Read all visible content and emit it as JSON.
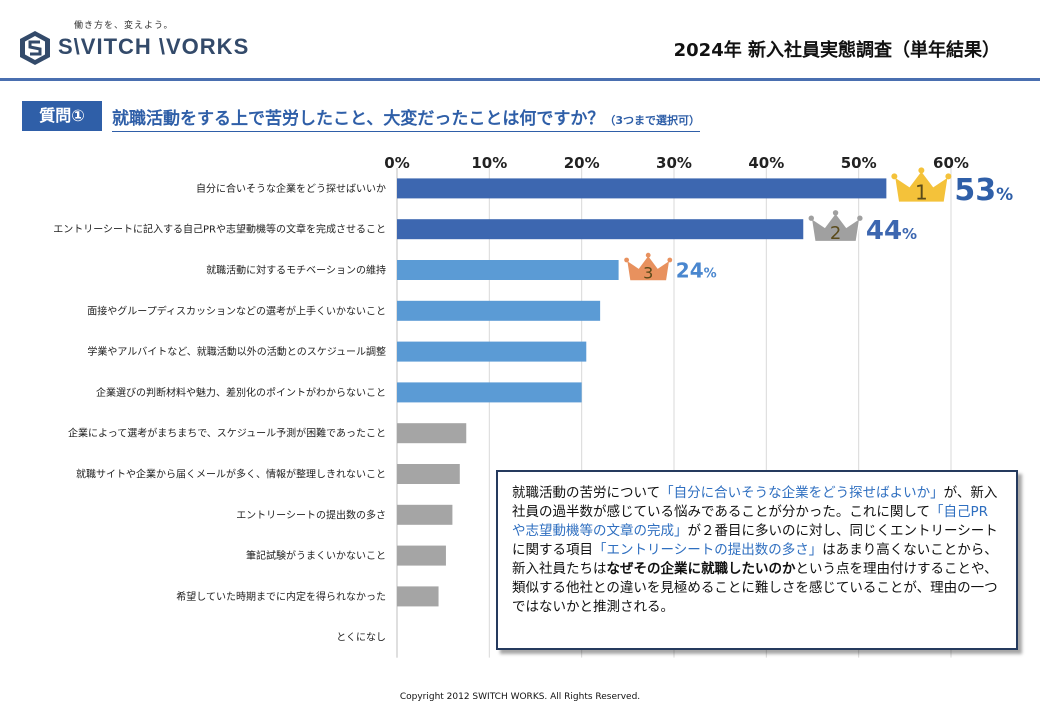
{
  "header": {
    "logo_tagline": "働き方を、変えよう。",
    "logo_text": "S\\VITCH \\VORKS",
    "report_title": "2024年 新入社員実態調査（単年結果）"
  },
  "question": {
    "badge": "質問①",
    "text": "就職活動をする上で苦労したこと、大変だったことは何ですか？",
    "note": "（3つまで選択可）"
  },
  "colors": {
    "top3": "#3d67b0",
    "upper": "#5b9bd5",
    "lower": "#a5a5a5",
    "gold": "#f4c23a",
    "silver": "#a0a0a0",
    "bronze": "#e8915e"
  },
  "chart_data": {
    "type": "bar",
    "orientation": "horizontal",
    "xlim": [
      0,
      60
    ],
    "xticks": [
      "0%",
      "10%",
      "20%",
      "30%",
      "40%",
      "50%",
      "60%"
    ],
    "grid": true,
    "categories": [
      "自分に合いそうな企業をどう探せばいいか",
      "エントリーシートに記入する自己PRや志望動機等の文章を完成させること",
      "就職活動に対するモチベーションの維持",
      "面接やグループディスカッションなどの選考が上手くいかないこと",
      "学業やアルバイトなど、就職活動以外の活動とのスケジュール調整",
      "企業選びの判断材料や魅力、差別化のポイントがわからないこと",
      "企業によって選考がまちまちで、スケジュール予測が困難であったこと",
      "就職サイトや企業から届くメールが多く、情報が整理しきれないこと",
      "エントリーシートの提出数の多さ",
      "筆記試験がうまくいかないこと",
      "希望していた時期までに内定を得られなかった",
      "とくになし"
    ],
    "values": [
      53,
      44,
      24,
      22,
      20.5,
      20,
      7.5,
      6.8,
      6.0,
      5.3,
      4.5,
      0
    ],
    "ranks": [
      {
        "rank": "1",
        "value": "53",
        "unit": "%"
      },
      {
        "rank": "2",
        "value": "44",
        "unit": "%"
      },
      {
        "rank": "3",
        "value": "24",
        "unit": "%"
      }
    ]
  },
  "comment": {
    "p1": "就職活動の苦労について",
    "h1": "「自分に合いそうな企業をどう探せばよいか」",
    "p2": "が、新入社員の過半数が感じている悩みであることが分かった。これに関して",
    "h2": "「自己PRや志望動機等の文章の完成」",
    "p3": "が２番目に多いのに対し、同じくエントリーシートに関する項目",
    "h3": "「エントリーシートの提出数の多さ」",
    "p4": "はあまり高くないことから、新入社員たちは",
    "b1": "なぜその企業に就職したいのか",
    "p5": "という点を理由付けすることや、類似する他社との違いを見極めることに難しさを感じていることが、理由の一つではないかと推測される。"
  },
  "footer": {
    "copyright": "Copyright 2012 SWITCH WORKS.  All Rights Reserved."
  }
}
